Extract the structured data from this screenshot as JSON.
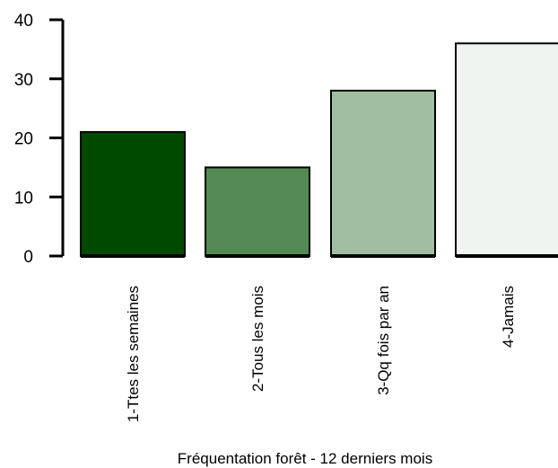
{
  "chart_data": {
    "type": "bar",
    "title": "",
    "xlabel": "Fréquentation forêt - 12 derniers mois",
    "ylabel": "",
    "categories": [
      "1-Ttes les semaines",
      "2-Tous les mois",
      "3-Qq fois par an",
      "4-Jamais"
    ],
    "values": [
      21,
      15,
      28,
      36
    ],
    "colors": [
      "#004a00",
      "#538a53",
      "#a2bea2",
      "#f0f4f0"
    ],
    "ylim": [
      0,
      40
    ],
    "yticks": [
      0,
      10,
      20,
      30,
      40
    ],
    "grid": false,
    "legend": "none"
  }
}
